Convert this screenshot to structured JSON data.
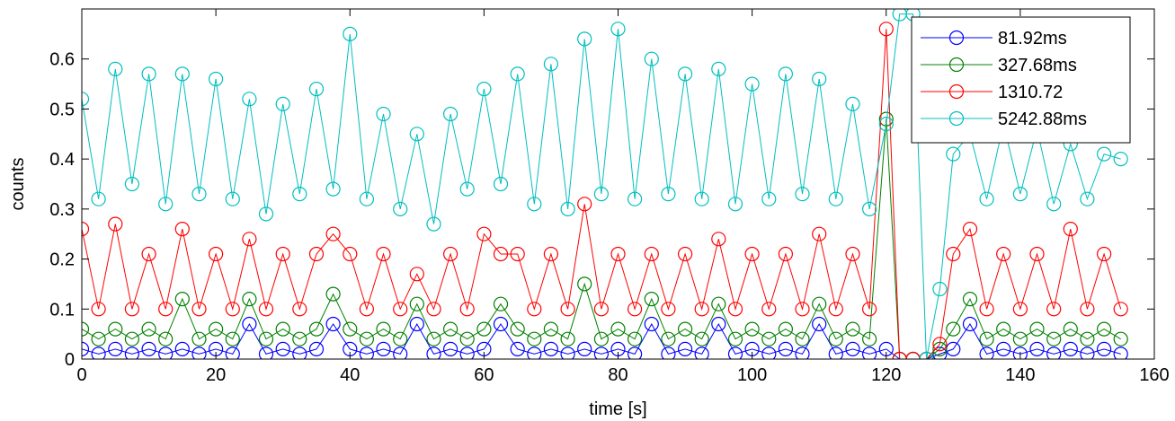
{
  "chart_data": {
    "type": "line",
    "title": "",
    "xlabel": "time [s]",
    "ylabel": "counts",
    "xlim": [
      0,
      160
    ],
    "ylim": [
      0,
      0.7
    ],
    "xticks": [
      0,
      20,
      40,
      60,
      80,
      100,
      120,
      140,
      160
    ],
    "yticks": [
      0,
      0.1,
      0.2,
      0.3,
      0.4,
      0.5,
      0.6
    ],
    "xtick_labels": [
      "0",
      "20",
      "40",
      "60",
      "80",
      "100",
      "120",
      "140",
      "160"
    ],
    "ytick_labels": [
      "0",
      "0.1",
      "0.2",
      "0.3",
      "0.4",
      "0.5",
      "0.6"
    ],
    "grid": false,
    "marker": "circle",
    "legend_position": "top-right",
    "series": [
      {
        "name": "81.92ms",
        "color": "#0000ff",
        "x": [
          0,
          2.5,
          5,
          7.5,
          10,
          12.5,
          15,
          17.5,
          20,
          22.5,
          25,
          27.5,
          30,
          32.5,
          35,
          37.5,
          40,
          42.5,
          45,
          47.5,
          50,
          52.5,
          55,
          57.5,
          60,
          62.5,
          65,
          67.5,
          70,
          72.5,
          75,
          77.5,
          80,
          82.5,
          85,
          87.5,
          90,
          92.5,
          95,
          97.5,
          100,
          102.5,
          105,
          107.5,
          110,
          112.5,
          115,
          117.5,
          120,
          122,
          124,
          126,
          128,
          130,
          132.5,
          135,
          137.5,
          140,
          142.5,
          145,
          147.5,
          150,
          152.5,
          155
        ],
        "y": [
          0.02,
          0.01,
          0.02,
          0.01,
          0.02,
          0.01,
          0.02,
          0.01,
          0.02,
          0.01,
          0.07,
          0.01,
          0.02,
          0.01,
          0.02,
          0.07,
          0.02,
          0.01,
          0.02,
          0.01,
          0.07,
          0.01,
          0.02,
          0.01,
          0.02,
          0.07,
          0.02,
          0.01,
          0.02,
          0.01,
          0.02,
          0.01,
          0.02,
          0.01,
          0.07,
          0.01,
          0.02,
          0.01,
          0.07,
          0.01,
          0.02,
          0.01,
          0.02,
          0.01,
          0.07,
          0.01,
          0.02,
          0.01,
          0.02,
          0,
          0,
          0,
          0.01,
          0.02,
          0.07,
          0.01,
          0.02,
          0.01,
          0.02,
          0.01,
          0.02,
          0.01,
          0.02,
          0.01
        ]
      },
      {
        "name": "327.68ms",
        "color": "#008000",
        "x": [
          0,
          2.5,
          5,
          7.5,
          10,
          12.5,
          15,
          17.5,
          20,
          22.5,
          25,
          27.5,
          30,
          32.5,
          35,
          37.5,
          40,
          42.5,
          45,
          47.5,
          50,
          52.5,
          55,
          57.5,
          60,
          62.5,
          65,
          67.5,
          70,
          72.5,
          75,
          77.5,
          80,
          82.5,
          85,
          87.5,
          90,
          92.5,
          95,
          97.5,
          100,
          102.5,
          105,
          107.5,
          110,
          112.5,
          115,
          117.5,
          120,
          122,
          124,
          126,
          128,
          130,
          132.5,
          135,
          137.5,
          140,
          142.5,
          145,
          147.5,
          150,
          152.5,
          155
        ],
        "y": [
          0.06,
          0.04,
          0.06,
          0.04,
          0.06,
          0.04,
          0.12,
          0.04,
          0.06,
          0.04,
          0.12,
          0.04,
          0.06,
          0.04,
          0.06,
          0.13,
          0.06,
          0.04,
          0.06,
          0.04,
          0.11,
          0.04,
          0.06,
          0.04,
          0.06,
          0.11,
          0.06,
          0.04,
          0.06,
          0.04,
          0.15,
          0.04,
          0.06,
          0.04,
          0.12,
          0.04,
          0.06,
          0.04,
          0.11,
          0.04,
          0.06,
          0.04,
          0.06,
          0.04,
          0.11,
          0.04,
          0.06,
          0.04,
          0.48,
          0,
          0,
          0,
          0.02,
          0.06,
          0.12,
          0.04,
          0.06,
          0.04,
          0.06,
          0.04,
          0.06,
          0.04,
          0.06,
          0.04
        ]
      },
      {
        "name": "1310.72",
        "color": "#ff0000",
        "x": [
          0,
          2.5,
          5,
          7.5,
          10,
          12.5,
          15,
          17.5,
          20,
          22.5,
          25,
          27.5,
          30,
          32.5,
          35,
          37.5,
          40,
          42.5,
          45,
          47.5,
          50,
          52.5,
          55,
          57.5,
          60,
          62.5,
          65,
          67.5,
          70,
          72.5,
          75,
          77.5,
          80,
          82.5,
          85,
          87.5,
          90,
          92.5,
          95,
          97.5,
          100,
          102.5,
          105,
          107.5,
          110,
          112.5,
          115,
          117.5,
          120,
          122,
          124,
          126,
          128,
          130,
          132.5,
          135,
          137.5,
          140,
          142.5,
          145,
          147.5,
          150,
          152.5,
          155
        ],
        "y": [
          0.26,
          0.1,
          0.27,
          0.1,
          0.21,
          0.1,
          0.26,
          0.1,
          0.21,
          0.1,
          0.24,
          0.1,
          0.21,
          0.1,
          0.21,
          0.25,
          0.21,
          0.1,
          0.21,
          0.1,
          0.17,
          0.1,
          0.21,
          0.1,
          0.25,
          0.21,
          0.21,
          0.1,
          0.21,
          0.1,
          0.31,
          0.1,
          0.21,
          0.1,
          0.21,
          0.1,
          0.21,
          0.1,
          0.24,
          0.1,
          0.21,
          0.1,
          0.21,
          0.1,
          0.25,
          0.1,
          0.21,
          0.1,
          0.66,
          0,
          0,
          0,
          0.03,
          0.21,
          0.26,
          0.1,
          0.21,
          0.1,
          0.21,
          0.1,
          0.26,
          0.1,
          0.21,
          0.1
        ]
      },
      {
        "name": "5242.88ms",
        "color": "#00bfbf",
        "x": [
          0,
          2.5,
          5,
          7.5,
          10,
          12.5,
          15,
          17.5,
          20,
          22.5,
          25,
          27.5,
          30,
          32.5,
          35,
          37.5,
          40,
          42.5,
          45,
          47.5,
          50,
          52.5,
          55,
          57.5,
          60,
          62.5,
          65,
          67.5,
          70,
          72.5,
          75,
          77.5,
          80,
          82.5,
          85,
          87.5,
          90,
          92.5,
          95,
          97.5,
          100,
          102.5,
          105,
          107.5,
          110,
          112.5,
          115,
          117.5,
          120,
          122,
          124,
          126,
          128,
          130,
          132.5,
          135,
          137.5,
          140,
          142.5,
          145,
          147.5,
          150,
          152.5,
          155
        ],
        "y": [
          0.52,
          0.32,
          0.58,
          0.35,
          0.57,
          0.31,
          0.57,
          0.33,
          0.56,
          0.32,
          0.52,
          0.29,
          0.51,
          0.33,
          0.54,
          0.34,
          0.65,
          0.32,
          0.49,
          0.3,
          0.45,
          0.27,
          0.49,
          0.34,
          0.54,
          0.35,
          0.57,
          0.31,
          0.59,
          0.3,
          0.64,
          0.33,
          0.66,
          0.32,
          0.6,
          0.33,
          0.57,
          0.32,
          0.58,
          0.31,
          0.55,
          0.32,
          0.57,
          0.33,
          0.56,
          0.32,
          0.51,
          0.3,
          0.47,
          0.69,
          0.69,
          0,
          0.14,
          0.41,
          0.45,
          0.32,
          0.47,
          0.33,
          0.46,
          0.31,
          0.43,
          0.32,
          0.41,
          0.4
        ]
      }
    ]
  }
}
